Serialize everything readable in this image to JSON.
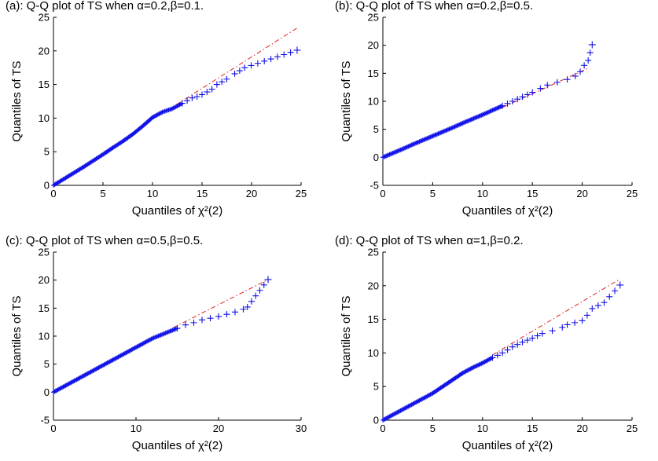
{
  "chart_data": [
    {
      "type": "scatter",
      "title": "(a): Q-Q plot of TS when α=0.2,β=0.1.",
      "xlabel": "Quantiles of χ²(2)",
      "ylabel": "Quantiles of TS",
      "xlim": [
        0,
        25
      ],
      "ylim": [
        0,
        25
      ],
      "xticks": [
        "0",
        "5",
        "10",
        "15",
        "20",
        "25"
      ],
      "yticks": [
        "0",
        "5",
        "10",
        "15",
        "20",
        "25"
      ],
      "reference_line": [
        [
          12.4,
          12.0
        ],
        [
          24.6,
          23.4
        ]
      ],
      "series": [
        {
          "values": [
            [
              0,
              0
            ],
            [
              1,
              0.9
            ],
            [
              2,
              1.8
            ],
            [
              3,
              2.7
            ],
            [
              4,
              3.65
            ],
            [
              5,
              4.6
            ],
            [
              6,
              5.6
            ],
            [
              7,
              6.55
            ],
            [
              8,
              7.6
            ],
            [
              9,
              8.8
            ],
            [
              10,
              10.1
            ],
            [
              11,
              10.9
            ],
            [
              12,
              11.4
            ],
            [
              12.5,
              11.8
            ],
            [
              13,
              12.2
            ],
            [
              13.5,
              12.6
            ],
            [
              14,
              13.0
            ],
            [
              14.5,
              13.2
            ],
            [
              15,
              13.5
            ],
            [
              15.5,
              13.9
            ],
            [
              16,
              14.3
            ],
            [
              16.5,
              15.0
            ],
            [
              17.5,
              15.8
            ],
            [
              18.3,
              16.6
            ],
            [
              19.3,
              17.5
            ],
            [
              24.6,
              20.1
            ]
          ]
        }
      ]
    },
    {
      "type": "scatter",
      "title": "(b): Q-Q plot of TS when α=0.2,β=0.5.",
      "xlabel": "Quantiles of χ²(2)",
      "ylabel": "Quantiles of TS",
      "xlim": [
        0,
        25
      ],
      "ylim": [
        -5,
        25
      ],
      "xticks": [
        "0",
        "5",
        "10",
        "15",
        "20",
        "25"
      ],
      "yticks": [
        "-5",
        "0",
        "5",
        "10",
        "15",
        "20",
        "25"
      ],
      "reference_line": [
        [
          12.0,
          8.9
        ],
        [
          20.6,
          15.9
        ]
      ],
      "series": [
        {
          "values": [
            [
              0,
              0
            ],
            [
              1,
              0.75
            ],
            [
              2,
              1.5
            ],
            [
              3,
              2.3
            ],
            [
              4,
              3.05
            ],
            [
              5,
              3.8
            ],
            [
              6,
              4.55
            ],
            [
              7,
              5.3
            ],
            [
              8,
              6.1
            ],
            [
              9,
              6.85
            ],
            [
              10,
              7.6
            ],
            [
              11,
              8.4
            ],
            [
              12,
              9.2
            ],
            [
              13,
              10.0
            ],
            [
              14,
              10.8
            ],
            [
              15,
              11.6
            ],
            [
              15.8,
              12.3
            ],
            [
              16.5,
              12.9
            ],
            [
              17.5,
              13.4
            ],
            [
              18.5,
              13.9
            ],
            [
              19.3,
              14.5
            ],
            [
              19.8,
              15.3
            ],
            [
              20.2,
              16.4
            ],
            [
              20.6,
              17.3
            ],
            [
              21.0,
              20.1
            ]
          ]
        }
      ]
    },
    {
      "type": "scatter",
      "title": "(c): Q-Q plot of TS when α=0.5,β=0.5.",
      "xlabel": "Quantiles of χ²(2)",
      "ylabel": "Quantiles of TS",
      "xlim": [
        0,
        30
      ],
      "ylim": [
        -5,
        25
      ],
      "xticks": [
        "0",
        "10",
        "20",
        "30"
      ],
      "yticks": [
        "-5",
        "0",
        "5",
        "10",
        "15",
        "20",
        "25"
      ],
      "reference_line": [
        [
          14.5,
          11.5
        ],
        [
          26.0,
          20.1
        ]
      ],
      "series": [
        {
          "values": [
            [
              0,
              0
            ],
            [
              2,
              1.6
            ],
            [
              4,
              3.2
            ],
            [
              6,
              4.8
            ],
            [
              8,
              6.4
            ],
            [
              10,
              8.0
            ],
            [
              12,
              9.6
            ],
            [
              14,
              10.8
            ],
            [
              15,
              11.4
            ],
            [
              16,
              12.0
            ],
            [
              17,
              12.4
            ],
            [
              18,
              12.9
            ],
            [
              19,
              13.2
            ],
            [
              20,
              13.5
            ],
            [
              21,
              13.9
            ],
            [
              22,
              14.3
            ],
            [
              23,
              14.8
            ],
            [
              23.5,
              15.2
            ],
            [
              24,
              16.2
            ],
            [
              24.5,
              17.2
            ],
            [
              26.0,
              20.1
            ]
          ]
        }
      ]
    },
    {
      "type": "scatter",
      "title": "(d): Q-Q plot of TS when α=1,β=0.2.",
      "xlabel": "Quantiles of χ²(2)",
      "ylabel": "Quantiles of TS",
      "xlim": [
        0,
        25
      ],
      "ylim": [
        0,
        25
      ],
      "xticks": [
        "0",
        "5",
        "10",
        "15",
        "20",
        "25"
      ],
      "yticks": [
        "0",
        "5",
        "10",
        "15",
        "20",
        "25"
      ],
      "reference_line": [
        [
          11.0,
          9.7
        ],
        [
          23.8,
          21.0
        ]
      ],
      "series": [
        {
          "values": [
            [
              0,
              0
            ],
            [
              1,
              0.8
            ],
            [
              2,
              1.6
            ],
            [
              3,
              2.4
            ],
            [
              4,
              3.2
            ],
            [
              5,
              4.0
            ],
            [
              6,
              5.0
            ],
            [
              7,
              6.0
            ],
            [
              8,
              7.0
            ],
            [
              9,
              7.8
            ],
            [
              10,
              8.5
            ],
            [
              11,
              9.3
            ],
            [
              12,
              10.0
            ],
            [
              13,
              10.9
            ],
            [
              14,
              11.6
            ],
            [
              15,
              12.2
            ],
            [
              16,
              12.9
            ],
            [
              17,
              13.3
            ],
            [
              18,
              13.8
            ],
            [
              18.5,
              14.2
            ],
            [
              20,
              14.8
            ],
            [
              20.5,
              15.6
            ],
            [
              21,
              16.6
            ],
            [
              22.2,
              17.5
            ],
            [
              23.8,
              20.1
            ]
          ]
        }
      ]
    }
  ]
}
